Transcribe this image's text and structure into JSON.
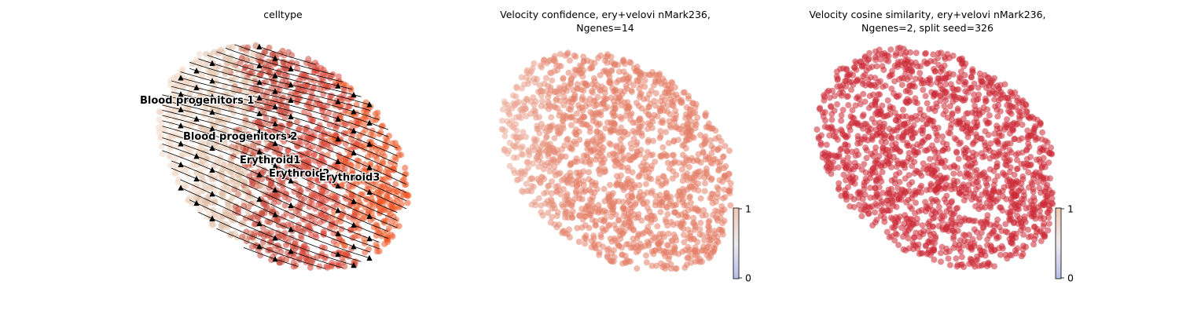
{
  "chart_data": [
    {
      "type": "scatter",
      "title": "celltype",
      "clusters": [
        "Blood progenitors 1",
        "Blood progenitors 2",
        "Erythroid1",
        "Erythroid2",
        "Erythroid3"
      ],
      "cluster_colors": [
        "#f3d8c8",
        "#e0c0a8",
        "#c84a3c",
        "#d9483a",
        "#ef5a28"
      ],
      "overlay": "velocity stream arrows",
      "axes": "off",
      "legend": "on data"
    },
    {
      "type": "scatter",
      "title": "Velocity confidence, ery+velovi nMark236,\nNgenes=14",
      "colorbar": {
        "min": 0,
        "max": 1,
        "ticks": [
          "0",
          "1"
        ]
      },
      "point_color": "#e38068",
      "axes": "off"
    },
    {
      "type": "scatter",
      "title": "Velocity cosine similarity, ery+velovi nMark236,\nNgenes=2, split seed=326",
      "colorbar": {
        "min": 0,
        "max": 1,
        "ticks": [
          "0",
          "1"
        ]
      },
      "point_color": "#cc2a36",
      "axes": "off"
    }
  ]
}
